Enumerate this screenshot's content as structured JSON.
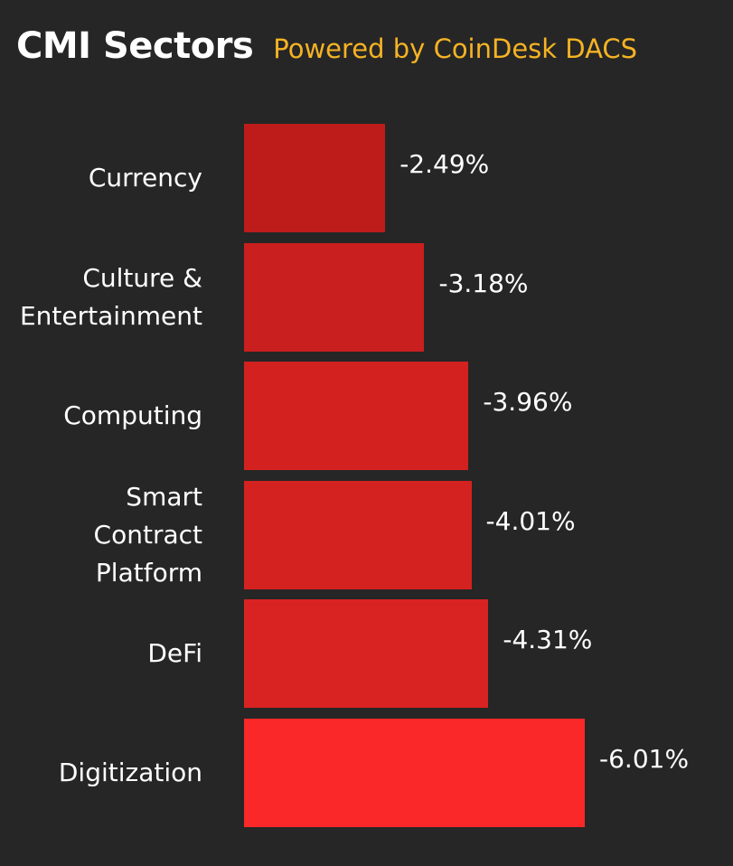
{
  "header": {
    "title": "CMI Sectors",
    "subtitle": "Powered by CoinDesk DACS"
  },
  "colors": {
    "background": "#262626",
    "subtitle": "#f5b324",
    "bars": [
      "#bd1c1a",
      "#c91f1e",
      "#d32120",
      "#d42220",
      "#d92322",
      "#fa2828"
    ]
  },
  "chart_data": {
    "type": "bar",
    "orientation": "horizontal",
    "title": "CMI Sectors",
    "subtitle": "Powered by CoinDesk DACS",
    "categories": [
      [
        "Currency"
      ],
      [
        "Culture &",
        "Entertainment"
      ],
      [
        "Computing"
      ],
      [
        "Smart",
        "Contract",
        "Platform"
      ],
      [
        "DeFi"
      ],
      [
        "Digitization"
      ]
    ],
    "values": [
      -2.49,
      -3.18,
      -3.96,
      -4.01,
      -4.31,
      -6.01
    ],
    "value_labels": [
      "-2.49%",
      "-3.18%",
      "-3.96%",
      "-4.01%",
      "-4.31%",
      "-6.01%"
    ],
    "xlim": [
      0,
      -6.01
    ],
    "grid": false,
    "legend": "none"
  }
}
